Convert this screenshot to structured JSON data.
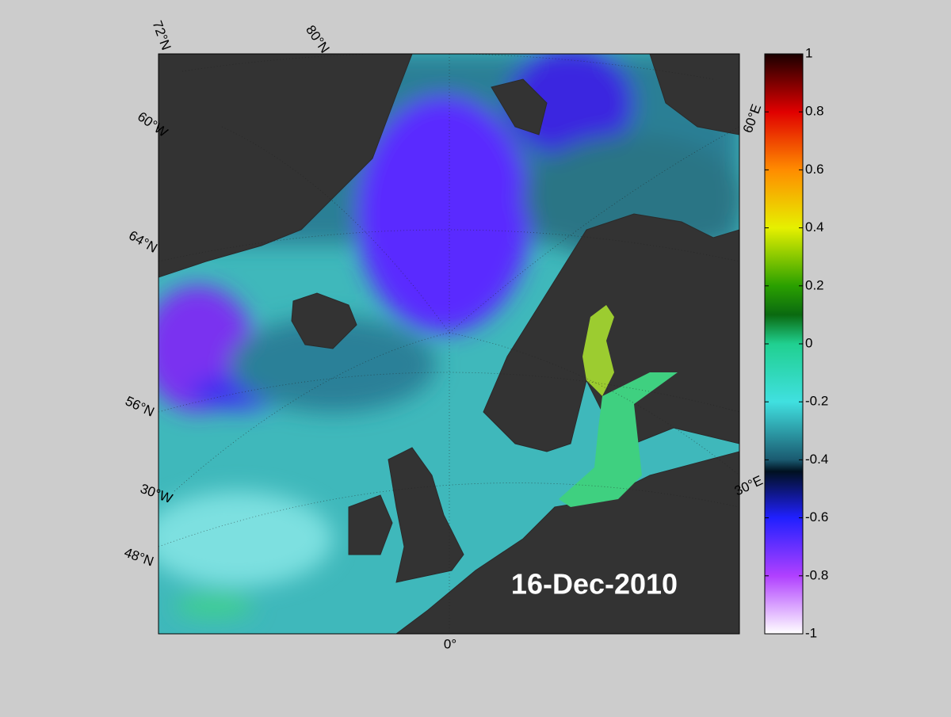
{
  "map": {
    "labels": [
      "72°N",
      "80°N",
      "60°W",
      "64°N",
      "56°N",
      "30°W",
      "48°N",
      "0°",
      "30°E",
      "60°E"
    ],
    "date": "16-Dec-2010"
  },
  "colorbar": {
    "lim": [
      -1,
      1
    ],
    "ticks": [
      1,
      0.8,
      0.6,
      0.4,
      0.2,
      0,
      -0.2,
      -0.4,
      -0.6,
      -0.8,
      -1
    ]
  }
}
